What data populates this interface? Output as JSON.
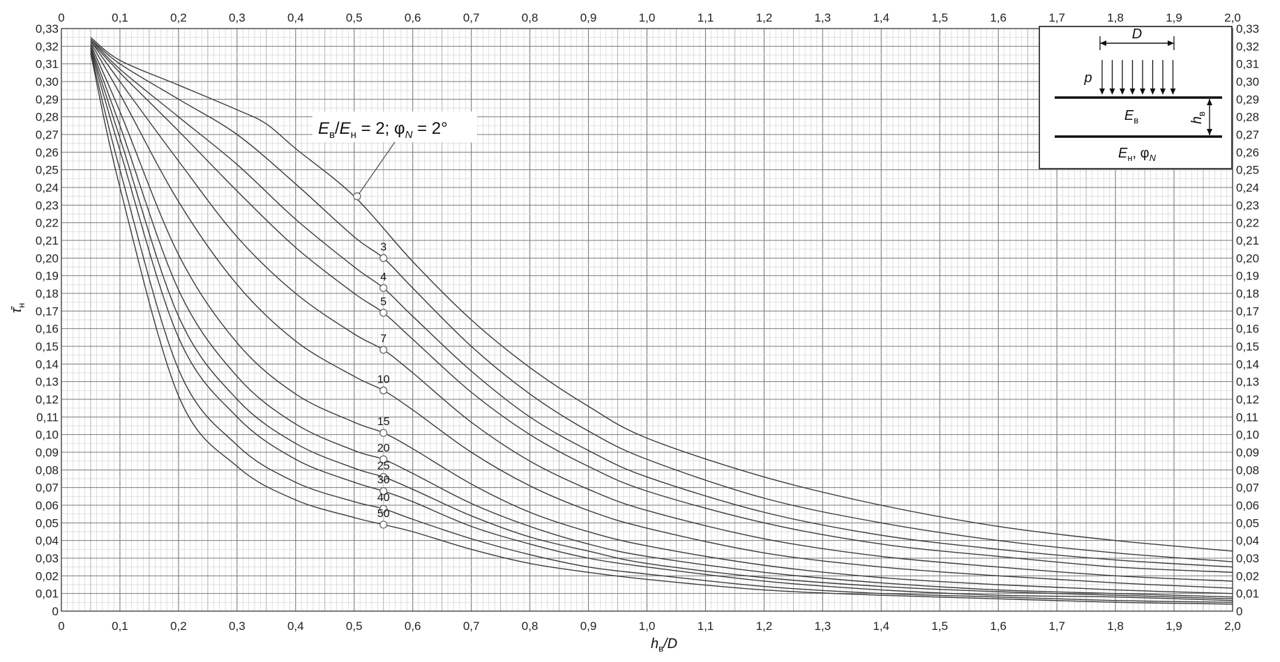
{
  "chart_data": {
    "type": "line",
    "title": "",
    "xlabel": "h_в/D",
    "ylabel": "τ̄_н",
    "xlim": [
      0,
      2.0
    ],
    "ylim": [
      0,
      0.33
    ],
    "grid": true,
    "x_ticks": [
      "0",
      "0,1",
      "0,2",
      "0,3",
      "0,4",
      "0,5",
      "0,6",
      "0,7",
      "0,8",
      "0,9",
      "1,0",
      "1,1",
      "1,2",
      "1,3",
      "1,4",
      "1,5",
      "1,6",
      "1,7",
      "1,8",
      "1,9",
      "2,0"
    ],
    "y_ticks": [
      "0",
      "0,01",
      "0,02",
      "0,03",
      "0,04",
      "0,05",
      "0,06",
      "0,07",
      "0,08",
      "0,09",
      "0,10",
      "0,11",
      "0,12",
      "0,13",
      "0,14",
      "0,15",
      "0,16",
      "0,17",
      "0,18",
      "0,19",
      "0,20",
      "0,21",
      "0,22",
      "0,23",
      "0,24",
      "0,25",
      "0,26",
      "0,27",
      "0,28",
      "0,29",
      "0,30",
      "0,31",
      "0,32",
      "0,33"
    ],
    "annotation": {
      "main_label": "E_в/E_н = 2; φ_N = 2°",
      "marker_x": 0.505,
      "marker_y": 0.235
    },
    "series": [
      {
        "name": "2",
        "x": [
          0.05,
          0.1,
          0.2,
          0.3,
          0.35,
          0.4,
          0.5,
          0.6,
          0.7,
          0.8,
          0.9,
          1.0,
          1.2,
          1.4,
          1.6,
          1.8,
          2.0
        ],
        "values": [
          0.325,
          0.312,
          0.298,
          0.284,
          0.276,
          0.262,
          0.235,
          0.198,
          0.165,
          0.138,
          0.116,
          0.098,
          0.076,
          0.06,
          0.048,
          0.04,
          0.034
        ]
      },
      {
        "name": "3",
        "x": [
          0.05,
          0.1,
          0.2,
          0.3,
          0.4,
          0.5,
          0.55,
          0.6,
          0.7,
          0.8,
          0.9,
          1.0,
          1.2,
          1.4,
          1.6,
          1.8,
          2.0
        ],
        "values": [
          0.324,
          0.31,
          0.29,
          0.27,
          0.242,
          0.212,
          0.2,
          0.183,
          0.15,
          0.123,
          0.102,
          0.086,
          0.064,
          0.05,
          0.04,
          0.033,
          0.028
        ]
      },
      {
        "name": "4",
        "x": [
          0.05,
          0.1,
          0.2,
          0.3,
          0.4,
          0.5,
          0.55,
          0.6,
          0.7,
          0.8,
          0.9,
          1.0,
          1.2,
          1.4,
          1.6,
          1.8,
          2.0
        ],
        "values": [
          0.324,
          0.307,
          0.28,
          0.253,
          0.222,
          0.195,
          0.183,
          0.167,
          0.136,
          0.11,
          0.091,
          0.076,
          0.056,
          0.043,
          0.035,
          0.029,
          0.025
        ]
      },
      {
        "name": "5",
        "x": [
          0.05,
          0.1,
          0.2,
          0.3,
          0.4,
          0.5,
          0.55,
          0.6,
          0.7,
          0.8,
          0.9,
          1.0,
          1.2,
          1.4,
          1.6,
          1.8,
          2.0
        ],
        "values": [
          0.323,
          0.305,
          0.272,
          0.238,
          0.206,
          0.18,
          0.169,
          0.154,
          0.124,
          0.1,
          0.082,
          0.068,
          0.05,
          0.038,
          0.031,
          0.025,
          0.022
        ]
      },
      {
        "name": "7",
        "x": [
          0.05,
          0.1,
          0.2,
          0.3,
          0.4,
          0.5,
          0.55,
          0.6,
          0.7,
          0.8,
          0.9,
          1.0,
          1.2,
          1.4,
          1.6,
          1.8,
          2.0
        ],
        "values": [
          0.323,
          0.3,
          0.255,
          0.212,
          0.18,
          0.157,
          0.148,
          0.135,
          0.107,
          0.085,
          0.069,
          0.057,
          0.041,
          0.031,
          0.025,
          0.02,
          0.017
        ]
      },
      {
        "name": "10",
        "x": [
          0.05,
          0.1,
          0.2,
          0.3,
          0.4,
          0.5,
          0.55,
          0.6,
          0.7,
          0.8,
          0.9,
          1.0,
          1.2,
          1.4,
          1.6,
          1.8,
          2.0
        ],
        "values": [
          0.322,
          0.293,
          0.232,
          0.185,
          0.153,
          0.133,
          0.125,
          0.114,
          0.09,
          0.071,
          0.057,
          0.047,
          0.033,
          0.025,
          0.02,
          0.016,
          0.013
        ]
      },
      {
        "name": "15",
        "x": [
          0.05,
          0.1,
          0.2,
          0.3,
          0.4,
          0.5,
          0.55,
          0.6,
          0.7,
          0.8,
          0.9,
          1.0,
          1.2,
          1.4,
          1.6,
          1.8,
          2.0
        ],
        "values": [
          0.321,
          0.283,
          0.202,
          0.152,
          0.123,
          0.107,
          0.101,
          0.092,
          0.072,
          0.056,
          0.045,
          0.037,
          0.026,
          0.019,
          0.015,
          0.012,
          0.01
        ]
      },
      {
        "name": "20",
        "x": [
          0.05,
          0.1,
          0.2,
          0.3,
          0.4,
          0.5,
          0.55,
          0.6,
          0.7,
          0.8,
          0.9,
          1.0,
          1.2,
          1.4,
          1.6,
          1.8,
          2.0
        ],
        "values": [
          0.32,
          0.275,
          0.182,
          0.133,
          0.106,
          0.091,
          0.086,
          0.078,
          0.061,
          0.048,
          0.038,
          0.031,
          0.022,
          0.016,
          0.012,
          0.01,
          0.008
        ]
      },
      {
        "name": "25",
        "x": [
          0.05,
          0.1,
          0.2,
          0.3,
          0.4,
          0.5,
          0.55,
          0.6,
          0.7,
          0.8,
          0.9,
          1.0,
          1.2,
          1.4,
          1.6,
          1.8,
          2.0
        ],
        "values": [
          0.319,
          0.268,
          0.167,
          0.12,
          0.095,
          0.081,
          0.076,
          0.069,
          0.054,
          0.042,
          0.034,
          0.027,
          0.019,
          0.014,
          0.011,
          0.009,
          0.007
        ]
      },
      {
        "name": "30",
        "x": [
          0.05,
          0.1,
          0.2,
          0.3,
          0.4,
          0.5,
          0.55,
          0.6,
          0.7,
          0.8,
          0.9,
          1.0,
          1.2,
          1.4,
          1.6,
          1.8,
          2.0
        ],
        "values": [
          0.318,
          0.261,
          0.155,
          0.11,
          0.086,
          0.073,
          0.068,
          0.062,
          0.048,
          0.038,
          0.03,
          0.025,
          0.017,
          0.012,
          0.009,
          0.008,
          0.006
        ]
      },
      {
        "name": "40",
        "x": [
          0.05,
          0.1,
          0.2,
          0.3,
          0.4,
          0.5,
          0.55,
          0.6,
          0.7,
          0.8,
          0.9,
          1.0,
          1.2,
          1.4,
          1.6,
          1.8,
          2.0
        ],
        "values": [
          0.317,
          0.25,
          0.137,
          0.094,
          0.073,
          0.062,
          0.058,
          0.052,
          0.041,
          0.032,
          0.025,
          0.021,
          0.014,
          0.01,
          0.008,
          0.006,
          0.005
        ]
      },
      {
        "name": "50",
        "x": [
          0.05,
          0.1,
          0.2,
          0.3,
          0.4,
          0.5,
          0.55,
          0.6,
          0.7,
          0.8,
          0.9,
          1.0,
          1.2,
          1.4,
          1.6,
          1.8,
          2.0
        ],
        "values": [
          0.316,
          0.24,
          0.122,
          0.082,
          0.063,
          0.053,
          0.049,
          0.045,
          0.035,
          0.027,
          0.022,
          0.018,
          0.012,
          0.009,
          0.007,
          0.005,
          0.004
        ]
      }
    ],
    "marker_points": [
      {
        "label": "3",
        "x": 0.55,
        "y": 0.2
      },
      {
        "label": "4",
        "x": 0.55,
        "y": 0.183
      },
      {
        "label": "5",
        "x": 0.55,
        "y": 0.169
      },
      {
        "label": "7",
        "x": 0.55,
        "y": 0.148
      },
      {
        "label": "10",
        "x": 0.55,
        "y": 0.125
      },
      {
        "label": "15",
        "x": 0.55,
        "y": 0.101
      },
      {
        "label": "20",
        "x": 0.55,
        "y": 0.086
      },
      {
        "label": "25",
        "x": 0.55,
        "y": 0.076
      },
      {
        "label": "30",
        "x": 0.55,
        "y": 0.068
      },
      {
        "label": "40",
        "x": 0.55,
        "y": 0.058
      },
      {
        "label": "50",
        "x": 0.55,
        "y": 0.049
      }
    ]
  },
  "inset": {
    "d_label": "D",
    "p_label": "p",
    "hb_label": "h",
    "hb_sub": "в",
    "eb_label": "E",
    "eb_sub": "в",
    "en_label": "E",
    "en_sub": "н",
    "phi_label": ", φ",
    "phi_sub": "N"
  },
  "labels": {
    "ann_e1": "E",
    "ann_sub1": "в",
    "ann_slash": "/",
    "ann_e2": "E",
    "ann_sub2": "н",
    "ann_eq": " = 2; φ",
    "ann_sub3": "N",
    "ann_end": " = 2°",
    "x_title_main": "h",
    "x_title_sub": "в",
    "x_title_rest": "/D",
    "y_title_main": "τ̄",
    "y_title_sub": "н"
  },
  "colors": {
    "curve": "#3a3a3a",
    "grid_major": "#7a7a7a",
    "grid_mid": "#a8a8a8",
    "grid_minor": "#d2d2d2"
  }
}
